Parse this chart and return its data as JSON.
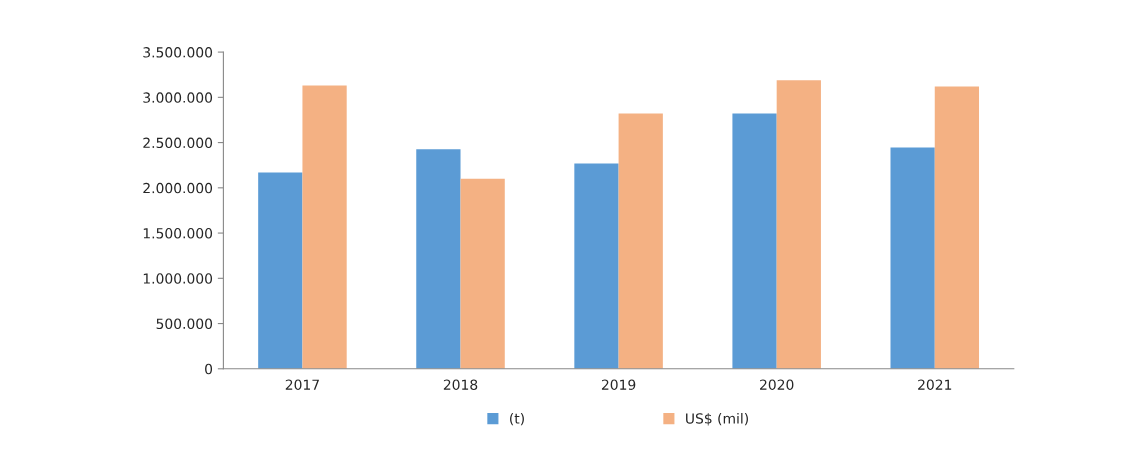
{
  "chart_data": {
    "type": "bar",
    "categories": [
      "2017",
      "2018",
      "2019",
      "2020",
      "2021"
    ],
    "series": [
      {
        "name": "(t)",
        "color": "#5b9bd5",
        "values": [
          2170000,
          2425000,
          2270000,
          2820000,
          2445000
        ]
      },
      {
        "name": "US$ (mil)",
        "color": "#f4b183",
        "values": [
          3130000,
          2100000,
          2820000,
          3190000,
          3120000
        ]
      }
    ],
    "ylim": [
      0,
      3500000
    ],
    "yticks": [
      0,
      {
        "value": 500000,
        "label": "500.000"
      },
      {
        "value": 1000000,
        "label": "1.000.000"
      },
      {
        "value": 1500000,
        "label": "1.500.000"
      },
      {
        "value": 2000000,
        "label": "2.000.000"
      },
      {
        "value": 2500000,
        "label": "2.500.000"
      },
      {
        "value": 3000000,
        "label": "3.000.000"
      },
      {
        "value": 3500000,
        "label": "3.500.000"
      }
    ],
    "grid": false,
    "legend": "bottom"
  }
}
